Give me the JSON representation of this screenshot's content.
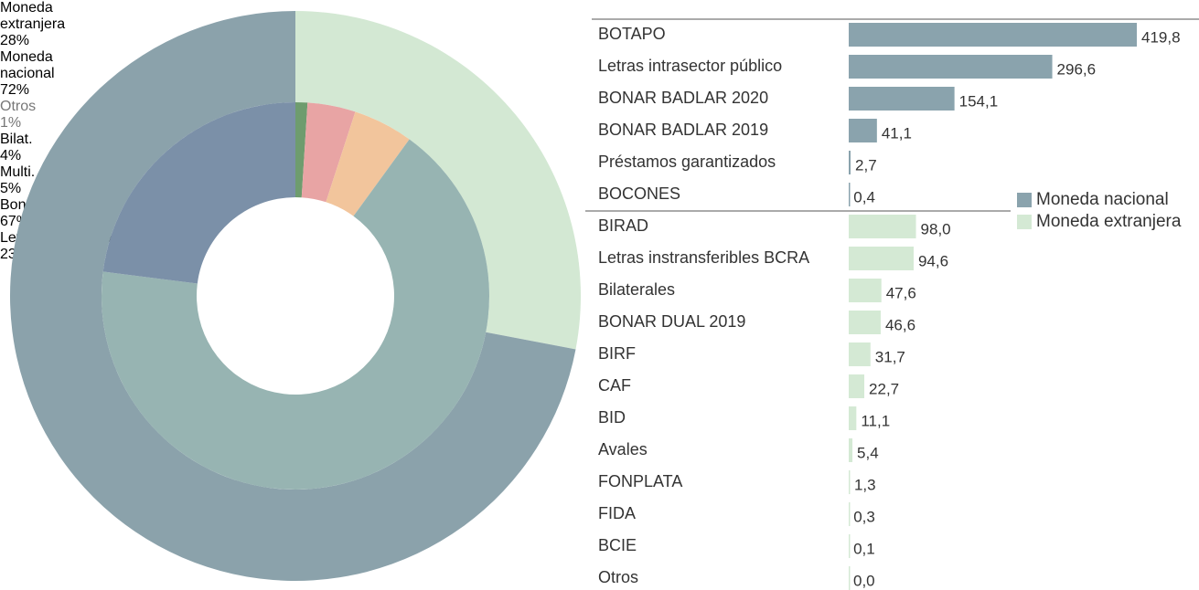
{
  "chart_data": [
    {
      "type": "pie",
      "rings": [
        {
          "labels": [
            "Moneda extranjera",
            "Moneda nacional"
          ],
          "values": [
            28,
            72
          ],
          "value_labels": [
            "28%",
            "72%"
          ],
          "colors": [
            "#d3e8d3",
            "#8ba2ab"
          ]
        },
        {
          "labels": [
            "Otros",
            "Bilat.",
            "Multi.",
            "Bonos",
            "Letras del Tesoro"
          ],
          "values": [
            1,
            4,
            5,
            67,
            23
          ],
          "value_labels": [
            "1%",
            "4%",
            "5%",
            "67%",
            "23%"
          ],
          "colors": [
            "#6e9c6e",
            "#e8a4a4",
            "#f2c59c",
            "#97b4b2",
            "#7b90a8"
          ]
        }
      ]
    },
    {
      "type": "barh",
      "categories": [
        "BOTAPO",
        "Letras intrasector público",
        "BONAR BADLAR 2020",
        "BONAR BADLAR 2019",
        "Préstamos garantizados",
        "BOCONES",
        "BIRAD",
        "Letras instransferibles BCRA",
        "Bilaterales",
        "BONAR DUAL 2019",
        "BIRF",
        "CAF",
        "BID",
        "Avales",
        "FONPLATA",
        "FIDA",
        "BCIE",
        "Otros"
      ],
      "series": [
        {
          "name": "Moneda nacional",
          "color": "#8aa3ad",
          "values": [
            419.8,
            296.6,
            154.1,
            41.1,
            2.7,
            0.4,
            null,
            null,
            null,
            null,
            null,
            null,
            null,
            null,
            null,
            null,
            null,
            null
          ],
          "value_labels": [
            "419,8",
            "296,6",
            "154,1",
            "41,1",
            "2,7",
            "0,4",
            null,
            null,
            null,
            null,
            null,
            null,
            null,
            null,
            null,
            null,
            null,
            null
          ]
        },
        {
          "name": "Moneda extranjera",
          "color": "#d4e9d4",
          "values": [
            null,
            null,
            null,
            null,
            null,
            null,
            98.0,
            94.6,
            47.6,
            46.6,
            31.7,
            22.7,
            11.1,
            5.4,
            1.3,
            0.3,
            0.1,
            0.0
          ],
          "value_labels": [
            null,
            null,
            null,
            null,
            null,
            null,
            "98,0",
            "94,6",
            "47,6",
            "46,6",
            "31,7",
            "22,7",
            "11,1",
            "5,4",
            "1,3",
            "0,3",
            "0,1",
            "0,0"
          ]
        }
      ]
    }
  ]
}
